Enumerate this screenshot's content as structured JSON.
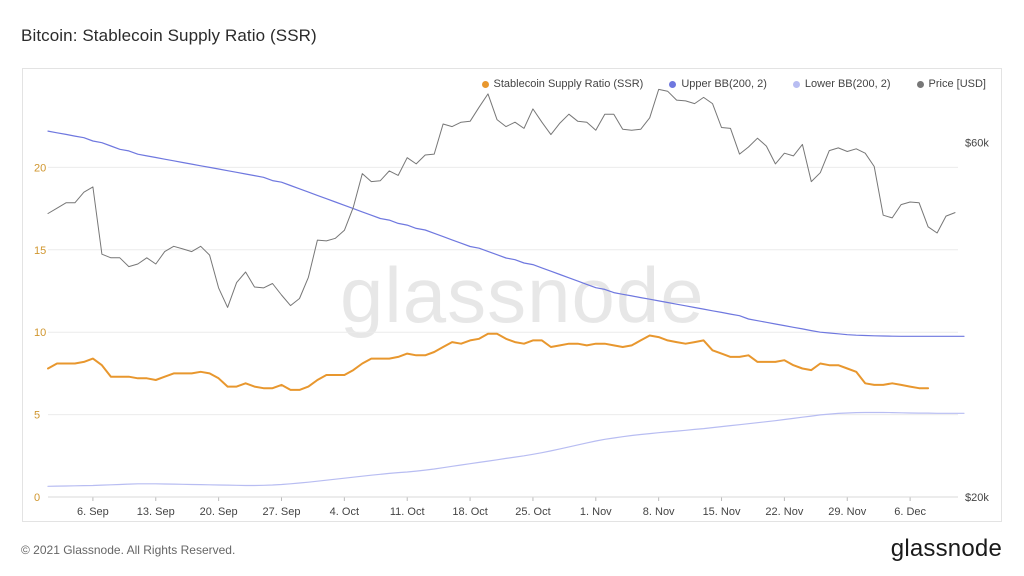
{
  "header": {
    "title": "Bitcoin: Stablecoin Supply Ratio (SSR)"
  },
  "footer": {
    "copyright": "© 2021 Glassnode. All Rights Reserved.",
    "logo": "glassnode"
  },
  "watermark": "glassnode",
  "legend": [
    {
      "label": "Stablecoin Supply Ratio (SSR)",
      "color": "#e8972e"
    },
    {
      "label": "Upper BB(200, 2)",
      "color": "#6f78df"
    },
    {
      "label": "Lower BB(200, 2)",
      "color": "#b8bdf2"
    },
    {
      "label": "Price [USD]",
      "color": "#777777"
    }
  ],
  "chart_data": {
    "type": "line",
    "title": "Bitcoin: Stablecoin Supply Ratio (SSR)",
    "x_tick_labels": [
      "6. Sep",
      "13. Sep",
      "20. Sep",
      "27. Sep",
      "4. Oct",
      "11. Oct",
      "18. Oct",
      "25. Oct",
      "1. Nov",
      "8. Nov",
      "15. Nov",
      "22. Nov",
      "29. Nov",
      "6. Dec"
    ],
    "x_start_day_index": 0,
    "x_end_day_index": 102,
    "x_tick_day_indices": [
      5,
      12,
      19,
      26,
      33,
      40,
      47,
      54,
      61,
      68,
      75,
      82,
      89,
      96
    ],
    "y_left": {
      "ticks": [
        0,
        5,
        10,
        15,
        20
      ],
      "range": [
        0,
        25
      ]
    },
    "y_right": {
      "ticks": [
        "$20k",
        "$60k"
      ],
      "tick_values": [
        20000,
        60000
      ],
      "range": [
        20000,
        66500
      ]
    },
    "series": [
      {
        "name": "Stablecoin Supply Ratio (SSR)",
        "axis": "left",
        "color": "#e8972e",
        "values": [
          7.8,
          8.1,
          8.1,
          8.1,
          8.2,
          8.4,
          8.0,
          7.3,
          7.3,
          7.3,
          7.2,
          7.2,
          7.1,
          7.3,
          7.5,
          7.5,
          7.5,
          7.6,
          7.5,
          7.2,
          6.7,
          6.7,
          6.9,
          6.7,
          6.6,
          6.6,
          6.8,
          6.5,
          6.5,
          6.7,
          7.1,
          7.4,
          7.4,
          7.4,
          7.7,
          8.1,
          8.4,
          8.4,
          8.4,
          8.5,
          8.7,
          8.6,
          8.6,
          8.8,
          9.1,
          9.4,
          9.3,
          9.5,
          9.6,
          9.9,
          9.9,
          9.6,
          9.4,
          9.3,
          9.5,
          9.5,
          9.1,
          9.2,
          9.3,
          9.3,
          9.2,
          9.3,
          9.3,
          9.2,
          9.1,
          9.2,
          9.5,
          9.8,
          9.7,
          9.5,
          9.4,
          9.3,
          9.4,
          9.5,
          8.9,
          8.7,
          8.5,
          8.5,
          8.6,
          8.2,
          8.2,
          8.2,
          8.3,
          8.0,
          7.8,
          7.7,
          8.1,
          8.0,
          8.0,
          7.8,
          7.6,
          6.9,
          6.8,
          6.8,
          6.9,
          6.8,
          6.7,
          6.6,
          6.6
        ]
      },
      {
        "name": "Upper BB(200, 2)",
        "axis": "left",
        "color": "#6f78df",
        "values": [
          22.2,
          22.1,
          22.0,
          21.9,
          21.8,
          21.6,
          21.5,
          21.3,
          21.1,
          21.0,
          20.8,
          20.7,
          20.6,
          20.5,
          20.4,
          20.3,
          20.2,
          20.1,
          20.0,
          19.9,
          19.8,
          19.7,
          19.6,
          19.5,
          19.4,
          19.2,
          19.1,
          18.9,
          18.7,
          18.5,
          18.3,
          18.1,
          17.9,
          17.7,
          17.5,
          17.3,
          17.1,
          16.9,
          16.8,
          16.6,
          16.5,
          16.3,
          16.2,
          16.0,
          15.8,
          15.6,
          15.4,
          15.2,
          15.1,
          14.9,
          14.7,
          14.5,
          14.4,
          14.2,
          14.1,
          13.9,
          13.7,
          13.5,
          13.3,
          13.1,
          12.9,
          12.7,
          12.6,
          12.4,
          12.3,
          12.2,
          12.1,
          12.0,
          11.9,
          11.8,
          11.7,
          11.6,
          11.5,
          11.4,
          11.3,
          11.2,
          11.1,
          11.0,
          10.8,
          10.7,
          10.6,
          10.5,
          10.4,
          10.3,
          10.2,
          10.1,
          10.0,
          9.95,
          9.9,
          9.85,
          9.82,
          9.8,
          9.78,
          9.77,
          9.76,
          9.75,
          9.75,
          9.75,
          9.75,
          9.75,
          9.75,
          9.75,
          9.75
        ]
      },
      {
        "name": "Lower BB(200, 2)",
        "axis": "left",
        "color": "#b8bdf2",
        "values": [
          0.65,
          0.66,
          0.67,
          0.68,
          0.69,
          0.7,
          0.72,
          0.74,
          0.76,
          0.78,
          0.8,
          0.8,
          0.8,
          0.79,
          0.78,
          0.77,
          0.76,
          0.75,
          0.74,
          0.73,
          0.72,
          0.71,
          0.7,
          0.7,
          0.71,
          0.73,
          0.76,
          0.8,
          0.85,
          0.9,
          0.96,
          1.02,
          1.08,
          1.14,
          1.2,
          1.26,
          1.32,
          1.38,
          1.43,
          1.48,
          1.52,
          1.57,
          1.63,
          1.7,
          1.78,
          1.86,
          1.94,
          2.02,
          2.1,
          2.18,
          2.26,
          2.34,
          2.42,
          2.5,
          2.59,
          2.69,
          2.8,
          2.92,
          3.04,
          3.16,
          3.28,
          3.4,
          3.5,
          3.58,
          3.66,
          3.73,
          3.79,
          3.85,
          3.9,
          3.95,
          4.0,
          4.05,
          4.1,
          4.15,
          4.21,
          4.27,
          4.33,
          4.39,
          4.45,
          4.51,
          4.57,
          4.63,
          4.7,
          4.77,
          4.84,
          4.91,
          4.98,
          5.03,
          5.07,
          5.1,
          5.12,
          5.13,
          5.13,
          5.13,
          5.12,
          5.11,
          5.1,
          5.09,
          5.09,
          5.08,
          5.08,
          5.08,
          5.08
        ]
      },
      {
        "name": "Price [USD]",
        "axis": "right",
        "color": "#777777",
        "values": [
          52000,
          52600,
          53200,
          53200,
          54400,
          55000,
          47400,
          47000,
          47000,
          46000,
          46300,
          47000,
          46300,
          47700,
          48300,
          48000,
          47700,
          48300,
          47300,
          43600,
          41400,
          44200,
          45400,
          43700,
          43600,
          44100,
          42800,
          41600,
          42400,
          44800,
          49000,
          48900,
          49200,
          50100,
          52700,
          56500,
          55600,
          55700,
          56800,
          56300,
          58300,
          57600,
          58600,
          58700,
          62100,
          61800,
          62300,
          62400,
          64000,
          65500,
          62600,
          61800,
          62300,
          61600,
          63800,
          62300,
          60900,
          62200,
          63200,
          62400,
          62300,
          61400,
          63200,
          63200,
          61500,
          61400,
          61500,
          62800,
          66000,
          65800,
          64800,
          64700,
          64400,
          65100,
          64400,
          61700,
          61600,
          58700,
          59500,
          60500,
          59600,
          57600,
          58800,
          58500,
          59800,
          55600,
          56600,
          59100,
          59400,
          59000,
          59300,
          58800,
          57300,
          51800,
          51500,
          53000,
          53300,
          53200,
          50500,
          49800,
          51700,
          52100
        ]
      }
    ]
  }
}
